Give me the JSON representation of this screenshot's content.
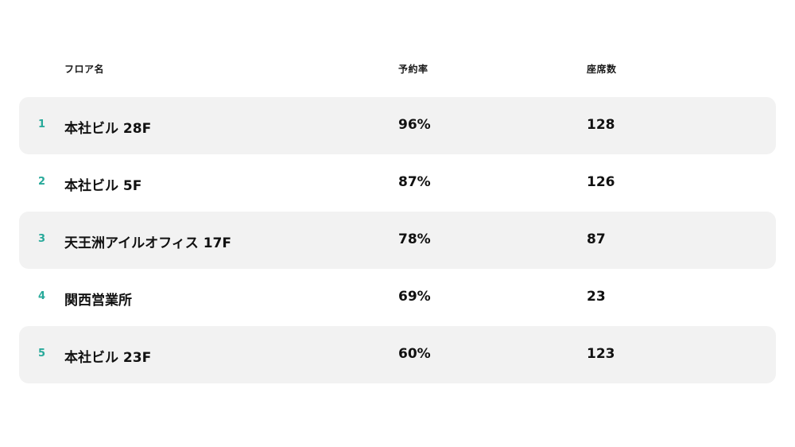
{
  "headers": {
    "name": "フロア名",
    "rate": "予約率",
    "seats": "座席数"
  },
  "rows": [
    {
      "rank": "1",
      "name": "本社ビル 28F",
      "rate": "96%",
      "seats": "128"
    },
    {
      "rank": "2",
      "name": "本社ビル 5F",
      "rate": "87%",
      "seats": "126"
    },
    {
      "rank": "3",
      "name": "天王洲アイルオフィス 17F",
      "rate": "78%",
      "seats": "87"
    },
    {
      "rank": "4",
      "name": "関西営業所",
      "rate": "69%",
      "seats": "23"
    },
    {
      "rank": "5",
      "name": "本社ビル 23F",
      "rate": "60%",
      "seats": "123"
    }
  ],
  "colors": {
    "rank": "#27a99a",
    "shaded_row": "#f2f2f2"
  }
}
